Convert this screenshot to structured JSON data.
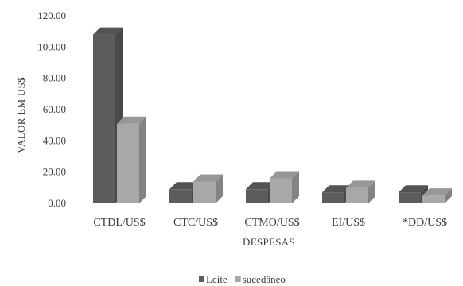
{
  "chart_data": {
    "type": "bar",
    "title": "",
    "xlabel": "DESPESAS",
    "ylabel": "VALOR EM US$",
    "categories": [
      "CTDL/US$",
      "CTC/US$",
      "CTMO/US$",
      "EI/US$",
      "*DD/US$"
    ],
    "series": [
      {
        "name": "Leite",
        "values": [
          108,
          9,
          9,
          7,
          7
        ],
        "color": "#5c5c5c"
      },
      {
        "name": "sucedâneo",
        "values": [
          51,
          14,
          16,
          10,
          5
        ],
        "color": "#a8a8a8"
      }
    ],
    "ylim": [
      0,
      120
    ],
    "yticks": [
      "0.00",
      "20.00",
      "40.00",
      "60.00",
      "80.00",
      "100.00",
      "120.00"
    ],
    "grid": false,
    "legend_position": "bottom-center",
    "style": "3d-columns"
  }
}
